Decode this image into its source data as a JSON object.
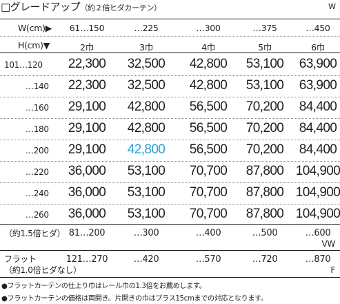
{
  "title": {
    "main": "□グレードアップ",
    "sub": "（約２倍ヒダカーテン）",
    "corner_label": "W"
  },
  "width_header": {
    "label": "W(cm)▶",
    "ranges": [
      "61…150",
      "…225",
      "…300",
      "…375",
      "…450"
    ]
  },
  "height_header": {
    "label": "H(cm)▼",
    "widths": [
      "2巾",
      "3巾",
      "4巾",
      "5巾",
      "6巾"
    ]
  },
  "rows": [
    {
      "label": "101…120",
      "values": [
        "22,300",
        "32,500",
        "42,800",
        "53,100",
        "63,900"
      ]
    },
    {
      "label": "…140",
      "values": [
        "22,300",
        "32,500",
        "42,800",
        "53,100",
        "63,900"
      ]
    },
    {
      "label": "…160",
      "values": [
        "29,100",
        "42,800",
        "56,500",
        "70,200",
        "84,400"
      ]
    },
    {
      "label": "…180",
      "values": [
        "29,100",
        "42,800",
        "56,500",
        "70,200",
        "84,400"
      ]
    },
    {
      "label": "…200",
      "values": [
        "29,100",
        "42,800",
        "56,500",
        "70,200",
        "84,400"
      ]
    },
    {
      "label": "…220",
      "values": [
        "36,000",
        "53,100",
        "70,700",
        "87,800",
        "104,900"
      ]
    },
    {
      "label": "…240",
      "values": [
        "36,000",
        "53,100",
        "70,700",
        "87,800",
        "104,900"
      ]
    },
    {
      "label": "…260",
      "values": [
        "36,000",
        "53,100",
        "70,700",
        "87,800",
        "104,900"
      ]
    }
  ],
  "highlight": {
    "row": 4,
    "col": 1,
    "color": "#2a9fd8"
  },
  "fold15": {
    "label": "（約1.5倍ヒダ）",
    "ranges": [
      "81…200",
      "…300",
      "…400",
      "…500",
      "…600"
    ],
    "unit": "VW"
  },
  "flat": {
    "label1": "フラット",
    "label2": "（約1.0倍ヒダなし）",
    "ranges": [
      "121…270",
      "…420",
      "…570",
      "…720",
      "…870"
    ],
    "unit": "F"
  },
  "footnotes": [
    "●フラットカーテンの仕上り巾はレール巾の1.3倍をお薦めします。",
    "●フラットカーテンの価格は両開き。片開きの巾はプラス15cmまでの対応となります。"
  ]
}
